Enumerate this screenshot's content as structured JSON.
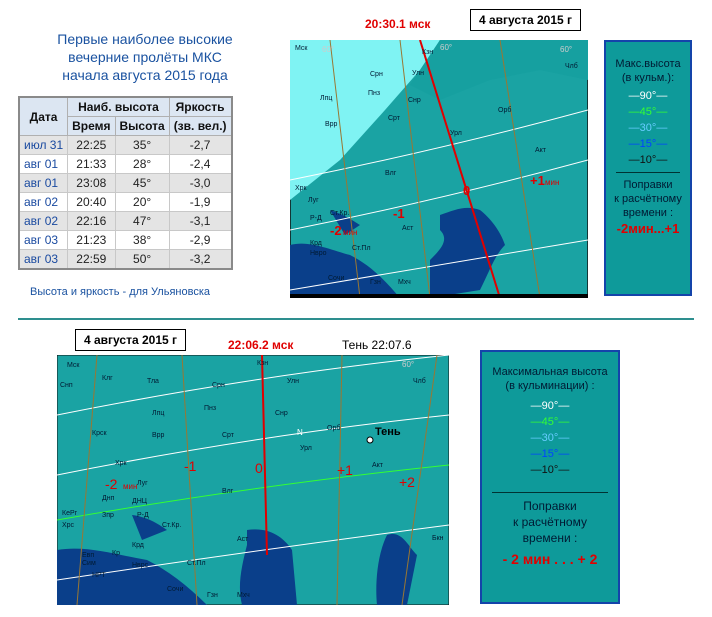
{
  "top_title": [
    "Первые наиболее высокие",
    "вечерние пролёты МКС",
    "начала августа 2015 года"
  ],
  "table": {
    "headers": {
      "date": "Дата",
      "max_height": "Наиб. высота",
      "time": "Время",
      "alt": "Высота",
      "brightness": "Яркость",
      "magnitude": "(зв. вел.)"
    },
    "rows": [
      {
        "date": "июл 31",
        "time": "22:25",
        "alt": "35°",
        "mag": "-2,7"
      },
      {
        "date": "авг 01",
        "time": "21:33",
        "alt": "28°",
        "mag": "-2,4"
      },
      {
        "date": "авг 01",
        "time": "23:08",
        "alt": "45°",
        "mag": "-3,0"
      },
      {
        "date": "авг 02",
        "time": "20:40",
        "alt": "20°",
        "mag": "-1,9"
      },
      {
        "date": "авг 02",
        "time": "22:16",
        "alt": "47°",
        "mag": "-3,1"
      },
      {
        "date": "авг 03",
        "time": "21:23",
        "alt": "38°",
        "mag": "-2,9"
      },
      {
        "date": "авг 03",
        "time": "22:59",
        "alt": "50°",
        "mag": "-3,2"
      }
    ]
  },
  "footnote": "Высота и яркость - для Ульяновска",
  "map1": {
    "date": "4 августа 2015 г",
    "time": "20:30.1 мск",
    "offsets": [
      "0",
      "-1",
      "-2",
      "+1"
    ],
    "offset_units": [
      "мин",
      "мин"
    ],
    "lat_labels": [
      "60°",
      "60°",
      "60°"
    ],
    "cities": [
      "Мск",
      "Кзн",
      "Члб",
      "Срн",
      "Улн",
      "Пнз",
      "Лпц",
      "Врр",
      "Срт",
      "Снр",
      "Орб",
      "Урл",
      "Акт",
      "Влг",
      "Луг",
      "Р-Д",
      "Ст.Кр.",
      "Крд",
      "Нвро",
      "Ст.Пл",
      "Сочи",
      "Гзн",
      "Мхч",
      "Аст",
      "Хрк"
    ]
  },
  "legend1": {
    "title": [
      "Макс.высота",
      "(в кульм.):"
    ],
    "levels": [
      {
        "label": "90°",
        "color": "#ffffff"
      },
      {
        "label": "45°",
        "color": "#33ff33"
      },
      {
        "label": "30°",
        "color": "#66ccff"
      },
      {
        "label": "15°",
        "color": "#0044ff"
      },
      {
        "label": "10°",
        "color": "#111111"
      }
    ],
    "corr_title": [
      "Поправки",
      "к расчётному",
      "времени :"
    ],
    "corr_value": "-2мин...+1"
  },
  "map2": {
    "date": "4 августа 2015 г",
    "time": "22:06.2 мск",
    "shadow": "Тень 22:07.6",
    "shadow_label": "Тень",
    "offsets": [
      "0",
      "-1",
      "-2",
      "+1",
      "+2"
    ],
    "offset_unit": "мин",
    "lat_label": "60°",
    "north": "N",
    "cities": [
      "Мск",
      "Снп",
      "Клг",
      "Тла",
      "Кзн",
      "Улн",
      "Члб",
      "Пнз",
      "Срн",
      "Лпц",
      "Крск",
      "Врр",
      "Срт",
      "Снр",
      "Урл",
      "Орб",
      "Акт",
      "Хрк",
      "Днп",
      "ДНЦ",
      "Луг",
      "Влг",
      "Р-Д",
      "Ст.Кр.",
      "Зпр",
      "Хрс",
      "КеРг",
      "Сим",
      "Евп",
      "Кр",
      "НРТ",
      "Крд",
      "Нврс",
      "Ст.Пл",
      "Сочи",
      "Гзн",
      "Мхч",
      "Аст",
      "Бкн"
    ]
  },
  "legend2": {
    "title": [
      "Максимальная высота",
      "(в кульминации) :"
    ],
    "levels": [
      {
        "label": "90°",
        "color": "#ffffff"
      },
      {
        "label": "45°",
        "color": "#33ff33"
      },
      {
        "label": "30°",
        "color": "#66ccff"
      },
      {
        "label": "15°",
        "color": "#0044ff"
      },
      {
        "label": "10°",
        "color": "#111111"
      }
    ],
    "corr_title": [
      "Поправки",
      "к расчётному",
      "времени :"
    ],
    "corr_value": "- 2 мин . . . + 2"
  }
}
